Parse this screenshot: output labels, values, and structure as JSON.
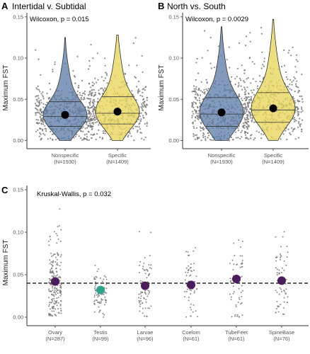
{
  "chart_data": [
    {
      "panel": "A",
      "type": "violin",
      "title": "Intertidal v. Subtidal",
      "annotation": "Wilcoxon, p = 0.015",
      "ylabel": "Maximum FST",
      "ylim": [
        -0.01,
        0.155
      ],
      "yticks": [
        0.0,
        0.05,
        0.1,
        0.15
      ],
      "ytick_labels": [
        "0.00",
        "0.05",
        "0.10",
        "0.15"
      ],
      "categories": [
        "Nonspecific",
        "Specific"
      ],
      "category_counts": [
        "(N=1930)",
        "(N=1409)"
      ],
      "colors": [
        "#5f7ea8",
        "#e8d659"
      ],
      "mean": [
        0.031,
        0.035
      ],
      "quantiles": [
        [
          0.017,
          0.029,
          0.047
        ],
        [
          0.02,
          0.033,
          0.053
        ]
      ],
      "max": [
        0.125,
        0.128
      ]
    },
    {
      "panel": "B",
      "type": "violin",
      "title": "North vs. South",
      "annotation": "Wilcoxon, p = 0.0029",
      "ylabel": "Maximum FST",
      "ylim": [
        -0.01,
        0.155
      ],
      "yticks": [
        0.0,
        0.05,
        0.1,
        0.15
      ],
      "ytick_labels": [
        "0.00",
        "0.05",
        "0.10",
        "0.15"
      ],
      "categories": [
        "Nonspecific",
        "Specific"
      ],
      "category_counts": [
        "(N=1930)",
        "(N=1409)"
      ],
      "colors": [
        "#5f7ea8",
        "#e8d659"
      ],
      "mean": [
        0.034,
        0.039
      ],
      "quantiles": [
        [
          0.017,
          0.032,
          0.052
        ],
        [
          0.022,
          0.037,
          0.058
        ]
      ],
      "max": [
        0.138,
        0.147
      ]
    },
    {
      "panel": "C",
      "type": "scatter",
      "annotation": "Kruskal-Wallis, p = 0.032",
      "ylabel": "Maximum FST",
      "ylim": [
        -0.01,
        0.155
      ],
      "yticks": [
        0.0,
        0.05,
        0.1,
        0.15
      ],
      "ytick_labels": [
        "0.00",
        "0.05",
        "0.10",
        "0.15"
      ],
      "categories": [
        "Ovary",
        "Testis",
        "Larvae",
        "Coelom",
        "TubeFeet",
        "SpineBase"
      ],
      "category_counts": [
        "(N=287)",
        "(N=99)",
        "(N=96)",
        "(N=61)",
        "(N=61)",
        "(N=76)"
      ],
      "mean": [
        0.042,
        0.032,
        0.037,
        0.038,
        0.045,
        0.043
      ],
      "mean_colors": [
        "#4a1c5c",
        "#2fa38a",
        "#4a1c5c",
        "#4a1c5c",
        "#4a1c5c",
        "#4a1c5c"
      ],
      "reference_line": 0.04,
      "max": [
        0.14,
        0.097,
        0.137,
        0.093,
        0.11,
        0.112
      ]
    }
  ]
}
